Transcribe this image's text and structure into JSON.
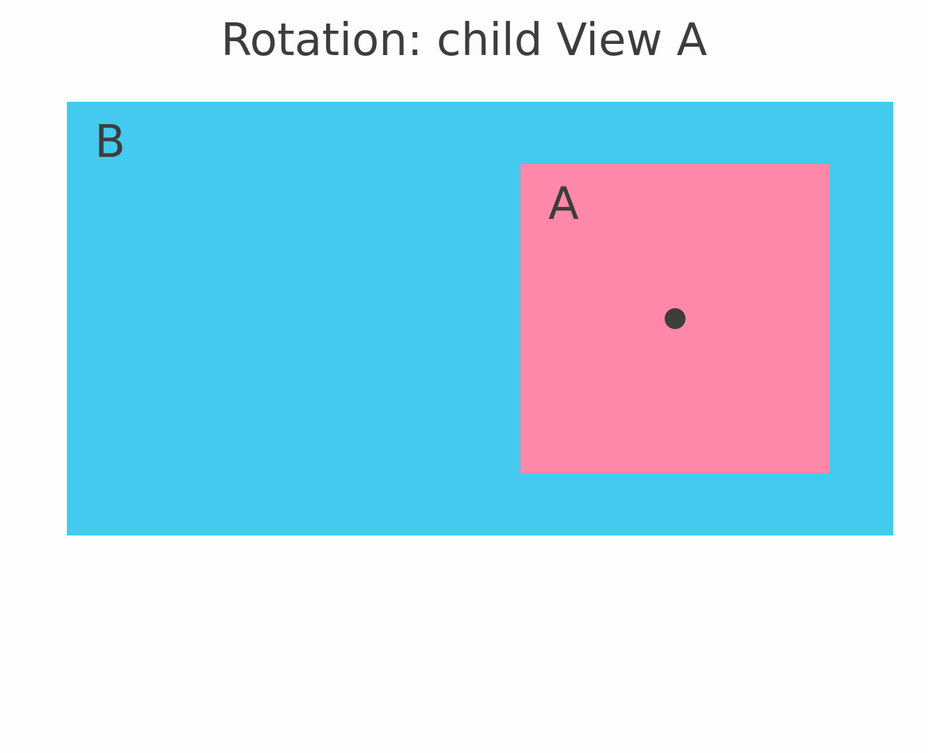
{
  "header": {
    "title": "Rotation: child View A"
  },
  "views": [
    {
      "label": "B"
    },
    {
      "label": "A"
    }
  ]
}
